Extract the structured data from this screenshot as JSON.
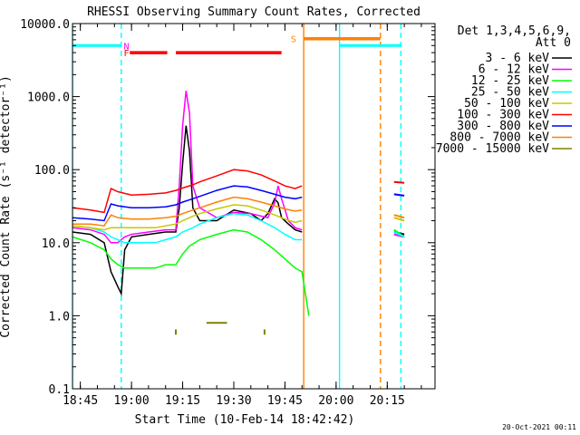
{
  "chart_data": {
    "type": "line",
    "title": "RHESSI Observing Summary Count Rates, Corrected",
    "xlabel": "Start Time (10-Feb-14 18:42:42)",
    "ylabel": "Corrected Count Rate (s⁻¹ detector⁻¹)",
    "x_unit": "minutes of day (UT)",
    "xlim": [
      1122.7,
      1229
    ],
    "ylim": [
      0.1,
      10000
    ],
    "yscale": "log",
    "x_ticks": [
      {
        "value": 1125,
        "label": "18:45"
      },
      {
        "value": 1140,
        "label": "19:00"
      },
      {
        "value": 1155,
        "label": "19:15"
      },
      {
        "value": 1170,
        "label": "19:30"
      },
      {
        "value": 1185,
        "label": "19:45"
      },
      {
        "value": 1200,
        "label": "20:00"
      },
      {
        "value": 1215,
        "label": "20:15"
      }
    ],
    "y_ticks": [
      {
        "value": 10000,
        "label": "10000.0"
      },
      {
        "value": 1000,
        "label": "1000.0"
      },
      {
        "value": 100,
        "label": "100.0"
      },
      {
        "value": 10,
        "label": "10.0"
      },
      {
        "value": 1,
        "label": "1.0"
      },
      {
        "value": 0.1,
        "label": "0.1"
      }
    ],
    "legend": {
      "placement": "right",
      "header_line1": "Det 1,3,4,5,6,9,",
      "header_line2": "Att 0"
    },
    "series": [
      {
        "name": "3 - 6 keV",
        "color": "#000000",
        "points": [
          [
            1122.7,
            14
          ],
          [
            1128,
            13
          ],
          [
            1132,
            10
          ],
          [
            1134,
            4
          ],
          [
            1136,
            2.5
          ],
          [
            1137,
            2
          ],
          [
            1138,
            8
          ],
          [
            1140,
            12
          ],
          [
            1145,
            13
          ],
          [
            1150,
            14
          ],
          [
            1153,
            14
          ],
          [
            1154,
            30
          ],
          [
            1155,
            120
          ],
          [
            1156,
            400
          ],
          [
            1157,
            180
          ],
          [
            1158,
            30
          ],
          [
            1160,
            20
          ],
          [
            1165,
            20
          ],
          [
            1170,
            28
          ],
          [
            1175,
            25
          ],
          [
            1178,
            20
          ],
          [
            1180,
            25
          ],
          [
            1182,
            40
          ],
          [
            1183,
            35
          ],
          [
            1184,
            22
          ],
          [
            1186,
            18
          ],
          [
            1188,
            15
          ],
          [
            1190,
            14
          ]
        ],
        "segments": [
          [
            [
              1217,
              14
            ],
            [
              1220,
              13
            ]
          ]
        ]
      },
      {
        "name": "6 - 12 keV",
        "color": "#ff00ff",
        "points": [
          [
            1122.7,
            16
          ],
          [
            1128,
            15
          ],
          [
            1132,
            13
          ],
          [
            1134,
            10
          ],
          [
            1136,
            10
          ],
          [
            1138,
            12
          ],
          [
            1140,
            13
          ],
          [
            1145,
            14
          ],
          [
            1150,
            15
          ],
          [
            1153,
            15
          ],
          [
            1154,
            60
          ],
          [
            1155,
            400
          ],
          [
            1156,
            1200
          ],
          [
            1157,
            600
          ],
          [
            1158,
            60
          ],
          [
            1160,
            30
          ],
          [
            1165,
            22
          ],
          [
            1170,
            26
          ],
          [
            1175,
            25
          ],
          [
            1180,
            22
          ],
          [
            1182,
            35
          ],
          [
            1183,
            60
          ],
          [
            1184,
            40
          ],
          [
            1186,
            20
          ],
          [
            1188,
            16
          ],
          [
            1190,
            15
          ]
        ],
        "segments": [
          [
            [
              1217,
              13
            ],
            [
              1220,
              12
            ]
          ]
        ]
      },
      {
        "name": "12 - 25 keV",
        "color": "#00ff00",
        "points": [
          [
            1122.7,
            12
          ],
          [
            1128,
            10
          ],
          [
            1132,
            8
          ],
          [
            1134,
            6
          ],
          [
            1136,
            5
          ],
          [
            1138,
            4.5
          ],
          [
            1142,
            4.5
          ],
          [
            1147,
            4.5
          ],
          [
            1150,
            5
          ],
          [
            1153,
            5
          ],
          [
            1155,
            7
          ],
          [
            1157,
            9
          ],
          [
            1160,
            11
          ],
          [
            1165,
            13
          ],
          [
            1170,
            15
          ],
          [
            1174,
            14
          ],
          [
            1178,
            11
          ],
          [
            1182,
            8
          ],
          [
            1185,
            6
          ],
          [
            1188,
            4.5
          ],
          [
            1190,
            4
          ],
          [
            1191,
            2
          ],
          [
            1192,
            1
          ]
        ],
        "segments": [
          [
            [
              1217,
              15
            ],
            [
              1220,
              12
            ]
          ]
        ]
      },
      {
        "name": "25 - 50 keV",
        "color": "#00ffff",
        "points": [
          [
            1122.7,
            17
          ],
          [
            1128,
            16
          ],
          [
            1132,
            14
          ],
          [
            1134,
            12
          ],
          [
            1138,
            10
          ],
          [
            1142,
            10
          ],
          [
            1147,
            10
          ],
          [
            1150,
            11
          ],
          [
            1153,
            12
          ],
          [
            1155,
            14
          ],
          [
            1158,
            16
          ],
          [
            1160,
            18
          ],
          [
            1165,
            22
          ],
          [
            1170,
            25
          ],
          [
            1174,
            24
          ],
          [
            1178,
            20
          ],
          [
            1182,
            16
          ],
          [
            1185,
            13
          ],
          [
            1188,
            11
          ],
          [
            1190,
            11
          ]
        ],
        "segments": [
          [
            [
              1217,
              14
            ],
            [
              1220,
              12
            ]
          ]
        ]
      },
      {
        "name": "50 - 100 keV",
        "color": "#c8c800",
        "points": [
          [
            1122.7,
            17
          ],
          [
            1128,
            16
          ],
          [
            1132,
            15
          ],
          [
            1134,
            16
          ],
          [
            1138,
            16
          ],
          [
            1142,
            16
          ],
          [
            1147,
            16
          ],
          [
            1150,
            17
          ],
          [
            1153,
            18
          ],
          [
            1155,
            20
          ],
          [
            1158,
            23
          ],
          [
            1160,
            25
          ],
          [
            1165,
            29
          ],
          [
            1170,
            33
          ],
          [
            1174,
            32
          ],
          [
            1178,
            28
          ],
          [
            1182,
            24
          ],
          [
            1185,
            21
          ],
          [
            1188,
            19
          ],
          [
            1190,
            20
          ]
        ],
        "segments": [
          [
            [
              1217,
              22
            ],
            [
              1220,
              20
            ]
          ]
        ]
      },
      {
        "name": "100 - 300 keV",
        "color": "#ff0000",
        "points": [
          [
            1122.7,
            30
          ],
          [
            1128,
            28
          ],
          [
            1132,
            26
          ],
          [
            1134,
            55
          ],
          [
            1136,
            50
          ],
          [
            1140,
            45
          ],
          [
            1145,
            46
          ],
          [
            1150,
            48
          ],
          [
            1153,
            52
          ],
          [
            1155,
            56
          ],
          [
            1158,
            62
          ],
          [
            1160,
            68
          ],
          [
            1165,
            82
          ],
          [
            1170,
            100
          ],
          [
            1174,
            96
          ],
          [
            1178,
            85
          ],
          [
            1182,
            70
          ],
          [
            1185,
            60
          ],
          [
            1188,
            55
          ],
          [
            1190,
            60
          ]
        ],
        "segments": [
          [
            [
              1217,
              68
            ],
            [
              1220,
              66
            ]
          ]
        ]
      },
      {
        "name": "300 - 800 keV",
        "color": "#0000ff",
        "points": [
          [
            1122.7,
            22
          ],
          [
            1128,
            21
          ],
          [
            1132,
            20
          ],
          [
            1134,
            34
          ],
          [
            1136,
            32
          ],
          [
            1140,
            30
          ],
          [
            1145,
            30
          ],
          [
            1150,
            31
          ],
          [
            1153,
            33
          ],
          [
            1155,
            36
          ],
          [
            1158,
            40
          ],
          [
            1160,
            43
          ],
          [
            1165,
            52
          ],
          [
            1170,
            60
          ],
          [
            1174,
            58
          ],
          [
            1178,
            52
          ],
          [
            1182,
            46
          ],
          [
            1185,
            42
          ],
          [
            1188,
            40
          ],
          [
            1190,
            42
          ]
        ],
        "segments": [
          [
            [
              1217,
              46
            ],
            [
              1220,
              44
            ]
          ]
        ]
      },
      {
        "name": "800 - 7000 keV",
        "color": "#ff8000",
        "points": [
          [
            1122.7,
            18
          ],
          [
            1128,
            18
          ],
          [
            1132,
            17
          ],
          [
            1134,
            24
          ],
          [
            1136,
            22
          ],
          [
            1140,
            21
          ],
          [
            1145,
            21
          ],
          [
            1150,
            22
          ],
          [
            1153,
            23
          ],
          [
            1155,
            25
          ],
          [
            1158,
            28
          ],
          [
            1160,
            30
          ],
          [
            1165,
            36
          ],
          [
            1170,
            42
          ],
          [
            1174,
            40
          ],
          [
            1178,
            36
          ],
          [
            1182,
            32
          ],
          [
            1185,
            29
          ],
          [
            1188,
            27
          ],
          [
            1190,
            28
          ]
        ],
        "segments": [
          [
            [
              1217,
              24
            ],
            [
              1220,
              22
            ]
          ]
        ]
      },
      {
        "name": "7000 - 15000 keV",
        "color": "#808000",
        "points": [],
        "segments": [
          [
            [
              1153,
              0.55
            ],
            [
              1153,
              0.65
            ]
          ],
          [
            [
              1162,
              0.8
            ],
            [
              1168,
              0.8
            ]
          ],
          [
            [
              1179,
              0.55
            ],
            [
              1179,
              0.65
            ]
          ]
        ]
      }
    ],
    "annotations": {
      "flags": [
        {
          "label": "F",
          "color": "#ff0000",
          "y": 4000,
          "ranges": [
            [
              1139.5,
              1150.5
            ],
            [
              1153,
              1184
            ]
          ],
          "label_x": 1138.5
        },
        {
          "label": "N",
          "color": "#ff00ff",
          "y": 5000,
          "ranges": [],
          "label_x": 1138.5
        },
        {
          "label": "S",
          "color": "#ff8000",
          "y": 6200,
          "ranges": [
            [
              1190.5,
              1213
            ]
          ],
          "label_x": 1187.5
        }
      ],
      "night_bars": [
        {
          "color": "#00ffff",
          "y": 5000,
          "ranges": [
            [
              1122.7,
              1137
            ],
            [
              1201,
              1219
            ]
          ]
        }
      ],
      "vlines": [
        {
          "x": 1122.7,
          "color": "#00ffff",
          "style": "solid"
        },
        {
          "x": 1137,
          "color": "#00ffff",
          "style": "dashed"
        },
        {
          "x": 1190.5,
          "color": "#ff8000",
          "style": "solid"
        },
        {
          "x": 1201,
          "color": "#00ffff",
          "style": "solid"
        },
        {
          "x": 1213,
          "color": "#ff8000",
          "style": "dashed"
        },
        {
          "x": 1219,
          "color": "#00ffff",
          "style": "dashed"
        }
      ]
    }
  },
  "footer": {
    "timestamp": "20-Oct-2021 00:11"
  }
}
